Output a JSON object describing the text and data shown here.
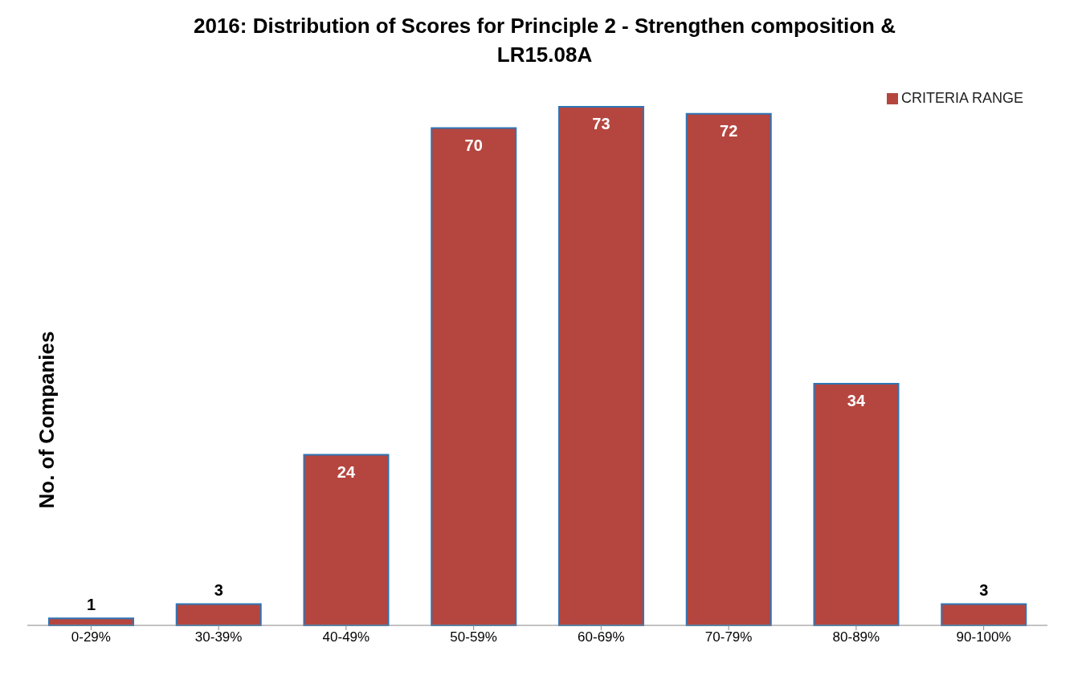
{
  "chart_data": {
    "type": "bar",
    "title": "2016: Distribution of Scores for Principle 2 - Strengthen composition & LR15.08A",
    "ylabel": "No. of Companies",
    "categories": [
      "0-29%",
      "30-39%",
      "40-49%",
      "50-59%",
      "60-69%",
      "70-79%",
      "80-89%",
      "90-100%"
    ],
    "series": [
      {
        "name": "CRITERIA RANGE",
        "color": "#b5463f",
        "values": [
          1,
          3,
          24,
          70,
          73,
          72,
          34,
          3
        ]
      }
    ],
    "data_labels": true,
    "legend": "top right"
  }
}
